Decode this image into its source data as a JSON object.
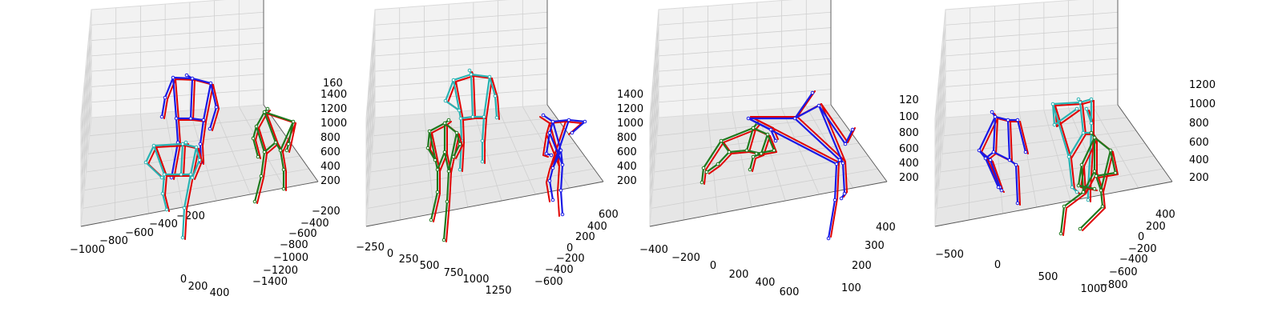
{
  "chart_data": [
    {
      "type": "scatter",
      "subtype": "3d-skeleton",
      "x_ticks": [
        "−1000",
        "−800",
        "−600",
        "−400",
        "−200",
        "0",
        "200",
        "400"
      ],
      "y_ticks": [
        "−200",
        "−400",
        "−600",
        "−800",
        "−1000",
        "−1200",
        "−1400"
      ],
      "z_ticks": [
        "200",
        "400",
        "600",
        "800",
        "1000",
        "1200",
        "1400",
        "160"
      ],
      "grid": true,
      "series": [
        {
          "color": "#e00000",
          "role": "ground-truth",
          "person": 1
        },
        {
          "color": "#1a1ae6",
          "role": "prediction",
          "person": 1
        },
        {
          "color": "#e00000",
          "role": "ground-truth",
          "person": 2
        },
        {
          "color": "#2ab3b3",
          "role": "prediction",
          "person": 2
        },
        {
          "color": "#e00000",
          "role": "ground-truth",
          "person": 3
        },
        {
          "color": "#1f7a1f",
          "role": "prediction",
          "person": 3
        }
      ]
    },
    {
      "type": "scatter",
      "subtype": "3d-skeleton",
      "x_ticks": [
        "−250",
        "0",
        "250",
        "500",
        "750",
        "1000",
        "1250"
      ],
      "y_ticks": [
        "600",
        "400",
        "200",
        "0",
        "−200",
        "−400",
        "−600"
      ],
      "z_ticks": [
        "200",
        "400",
        "600",
        "800",
        "1000",
        "1200",
        "1400"
      ],
      "grid": true,
      "series": [
        {
          "color": "#e00000",
          "role": "ground-truth",
          "person": 1
        },
        {
          "color": "#2ab3b3",
          "role": "prediction",
          "person": 1
        },
        {
          "color": "#e00000",
          "role": "ground-truth",
          "person": 2
        },
        {
          "color": "#1f7a1f",
          "role": "prediction",
          "person": 2
        },
        {
          "color": "#e00000",
          "role": "ground-truth",
          "person": 3
        },
        {
          "color": "#1a1ae6",
          "role": "prediction",
          "person": 3
        }
      ]
    },
    {
      "type": "scatter",
      "subtype": "3d-skeleton",
      "x_ticks": [
        "−400",
        "−200",
        "0",
        "200",
        "400",
        "600"
      ],
      "y_ticks": [
        "100",
        "200",
        "300",
        "400"
      ],
      "z_ticks": [
        "200",
        "400",
        "600",
        "800",
        "100",
        "120"
      ],
      "grid": true,
      "series": [
        {
          "color": "#e00000",
          "role": "ground-truth",
          "person": 1
        },
        {
          "color": "#1f7a1f",
          "role": "prediction",
          "person": 1
        },
        {
          "color": "#e00000",
          "role": "ground-truth",
          "person": 2
        },
        {
          "color": "#1a1ae6",
          "role": "prediction",
          "person": 2
        }
      ]
    },
    {
      "type": "scatter",
      "subtype": "3d-skeleton",
      "x_ticks": [
        "−500",
        "0",
        "500",
        "1000"
      ],
      "y_ticks": [
        "400",
        "200",
        "0",
        "−200",
        "−400",
        "−600",
        "−800"
      ],
      "z_ticks": [
        "200",
        "400",
        "600",
        "800",
        "1000",
        "1200"
      ],
      "grid": true,
      "series": [
        {
          "color": "#e00000",
          "role": "ground-truth",
          "person": 1
        },
        {
          "color": "#1a1ae6",
          "role": "prediction",
          "person": 1
        },
        {
          "color": "#e00000",
          "role": "ground-truth",
          "person": 2
        },
        {
          "color": "#2ab3b3",
          "role": "prediction",
          "person": 2
        },
        {
          "color": "#e00000",
          "role": "ground-truth",
          "person": 3
        },
        {
          "color": "#1f7a1f",
          "role": "prediction",
          "person": 3
        }
      ]
    }
  ],
  "colors": {
    "pane_light": "#f2f2f2",
    "pane_mid": "#ebebeb",
    "pane_dark": "#e6e6e6",
    "grid": "#cfcfcf",
    "axis_line": "#555555",
    "ground_truth": "#e00000",
    "pred_blue": "#1a1ae6",
    "pred_cyan": "#2ab3b3",
    "pred_green": "#1f7a1f"
  }
}
